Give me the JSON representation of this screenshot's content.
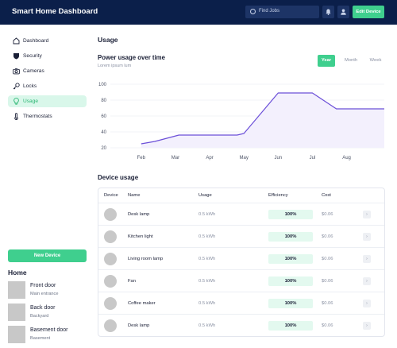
{
  "header": {
    "title": "Smart Home Dashboard",
    "search_placeholder": "Find Jobs",
    "edit_label": "Edit Device"
  },
  "sidebar": {
    "items": [
      {
        "label": "Dashboard",
        "icon": "home-icon"
      },
      {
        "label": "Security",
        "icon": "shield-icon"
      },
      {
        "label": "Cameras",
        "icon": "camera-icon"
      },
      {
        "label": "Locks",
        "icon": "key-icon"
      },
      {
        "label": "Usage",
        "icon": "lightbulb-icon",
        "active": true
      },
      {
        "label": "Thermostats",
        "icon": "thermometer-icon"
      }
    ],
    "new_device_label": "New Device",
    "home_heading": "Home",
    "rooms": [
      {
        "name": "Front door",
        "sub": "Main entrance"
      },
      {
        "name": "Back door",
        "sub": "Backyard"
      },
      {
        "name": "Basement door",
        "sub": "Basement"
      }
    ]
  },
  "main": {
    "title": "Usage",
    "chart_title": "Power usage over time",
    "chart_subtitle": "Lorem ipsum lum",
    "periods": [
      "Year",
      "Month",
      "Week"
    ],
    "active_period": "Year",
    "table_title": "Device usage",
    "table_headers": [
      "Device",
      "Name",
      "Usage",
      "Efficiency",
      "Cost"
    ],
    "rows": [
      {
        "name": "Desk lamp",
        "usage": "0.5 kWh",
        "efficiency": "100%",
        "cost": "$0.06"
      },
      {
        "name": "Kitchen light",
        "usage": "0.5 kWh",
        "efficiency": "100%",
        "cost": "$0.06"
      },
      {
        "name": "Living room lamp",
        "usage": "0.5 kWh",
        "efficiency": "100%",
        "cost": "$0.06"
      },
      {
        "name": "Fan",
        "usage": "0.5 kWh",
        "efficiency": "100%",
        "cost": "$0.06"
      },
      {
        "name": "Coffee maker",
        "usage": "0.5 kWh",
        "efficiency": "100%",
        "cost": "$0.06"
      },
      {
        "name": "Desk lamp",
        "usage": "0.5 kWh",
        "efficiency": "100%",
        "cost": "$0.06"
      }
    ]
  },
  "chart_data": {
    "type": "area",
    "x": [
      1,
      1.4,
      2.1,
      3.0,
      3.8,
      4.0,
      5.0,
      5.4,
      6.0,
      6.7,
      8.1
    ],
    "y": [
      25,
      28,
      36,
      36,
      36,
      38,
      89,
      89,
      89,
      69,
      69
    ],
    "x_tick_positions": [
      1,
      2,
      3,
      4,
      5,
      6,
      7
    ],
    "x_tick_labels": [
      "Feb",
      "Mar",
      "Apr",
      "May",
      "Jun",
      "Jul",
      "Aug"
    ],
    "y_ticks": [
      20,
      40,
      60,
      80,
      100
    ],
    "xlim": [
      0.1,
      8.1
    ],
    "ylim": [
      20,
      100
    ],
    "grid": true,
    "line_color": "#6b4fd8",
    "fill_color": "#f3f0fd"
  },
  "colors": {
    "header_bg": "#0b1f4a",
    "accent": "#3fcf8e"
  }
}
